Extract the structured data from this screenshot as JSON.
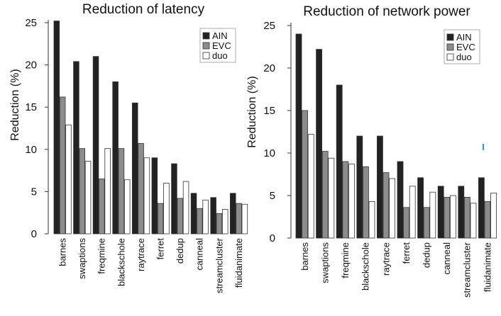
{
  "colors": {
    "AIN": "#222222",
    "EVC": "#8c8c8c",
    "duo": "#ffffff",
    "axis": "#333333",
    "bar_outline": "#333333",
    "accent_mark": "#3b8fd6"
  },
  "chart_data": [
    {
      "type": "bar",
      "title": "Reduction of latency",
      "xlabel": "",
      "ylabel": "Reduction (%)",
      "ylim": [
        0,
        25
      ],
      "yticks": [
        "0",
        "5",
        "10",
        "15",
        "20",
        "25"
      ],
      "grid": false,
      "legend_position": "top-right",
      "categories": [
        "barnes",
        "swaptions",
        "freqmine",
        "blackschole",
        "raytrace",
        "ferret",
        "dedup",
        "canneal",
        "streamcluster",
        "fluidanimate"
      ],
      "series": [
        {
          "name": "AIN",
          "values": [
            25.2,
            20.4,
            21.0,
            18.0,
            15.5,
            9.0,
            8.3,
            4.8,
            4.3,
            4.8
          ]
        },
        {
          "name": "EVC",
          "values": [
            16.2,
            10.1,
            6.5,
            10.1,
            10.7,
            3.6,
            4.2,
            3.0,
            2.4,
            3.6
          ]
        },
        {
          "name": "duo",
          "values": [
            12.9,
            8.6,
            10.1,
            6.4,
            9.0,
            6.0,
            6.2,
            4.0,
            2.9,
            3.5
          ]
        }
      ]
    },
    {
      "type": "bar",
      "title": "Reduction of network power",
      "xlabel": "",
      "ylabel": "Reduction (%)",
      "ylim": [
        0,
        25
      ],
      "yticks": [
        "0",
        "5",
        "10",
        "15",
        "20",
        "25"
      ],
      "grid": false,
      "legend_position": "top-right",
      "categories": [
        "barnes",
        "swaptions",
        "freqmine",
        "blackschole",
        "raytrace",
        "ferret",
        "dedup",
        "canneal",
        "streamcluster",
        "fluidanimate"
      ],
      "series": [
        {
          "name": "AIN",
          "values": [
            24.0,
            22.2,
            18.0,
            12.0,
            12.0,
            9.0,
            7.1,
            6.1,
            6.1,
            7.1
          ]
        },
        {
          "name": "EVC",
          "values": [
            15.0,
            10.2,
            9.0,
            8.4,
            7.7,
            3.6,
            3.6,
            4.8,
            4.8,
            4.3
          ]
        },
        {
          "name": "duo",
          "values": [
            12.2,
            9.4,
            8.7,
            4.3,
            7.0,
            6.1,
            5.4,
            5.0,
            4.1,
            5.3
          ]
        }
      ]
    }
  ]
}
